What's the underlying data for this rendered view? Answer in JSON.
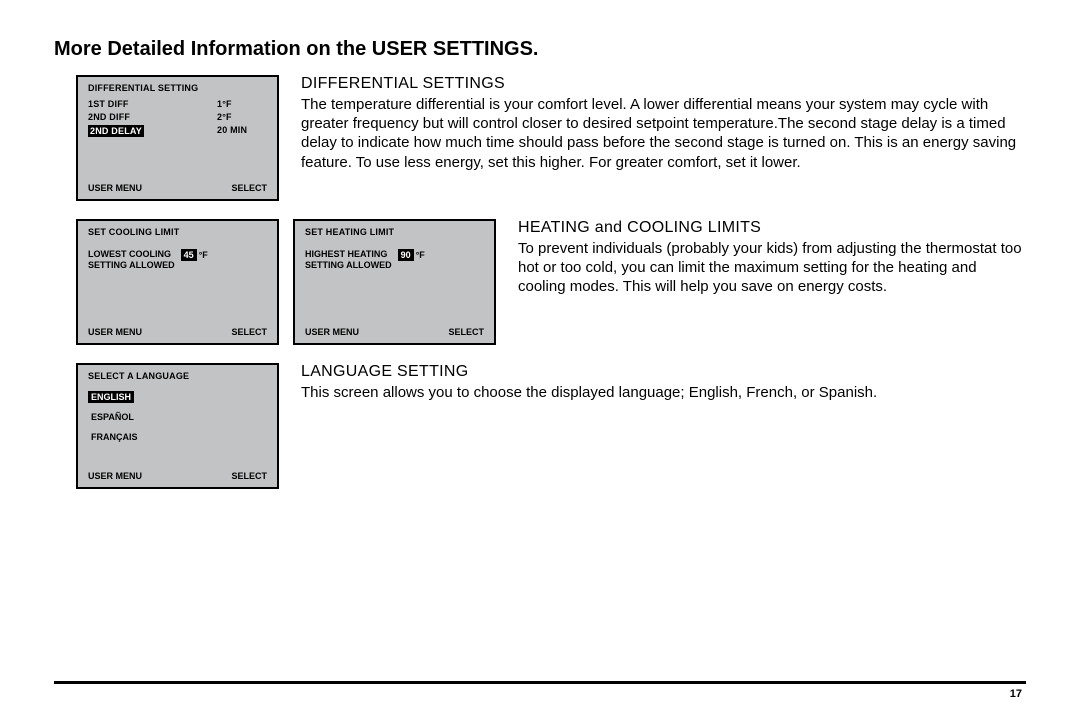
{
  "page": {
    "title": "More Detailed Information on the USER SETTINGS.",
    "number": "17"
  },
  "panels": {
    "differential": {
      "title": "DIFFERENTIAL SETTING",
      "rows": [
        {
          "label": "1ST DIFF",
          "value": "1°F",
          "highlight": false
        },
        {
          "label": "2ND DIFF",
          "value": "2°F",
          "highlight": false
        },
        {
          "label": "2ND DELAY",
          "value": "20 MIN",
          "highlight": true
        }
      ],
      "footer_left": "USER MENU",
      "footer_right": "SELECT"
    },
    "cooling": {
      "title": "SET COOLING LIMIT",
      "text_line1": "LOWEST COOLING",
      "text_line2": "SETTING ALLOWED",
      "value": "45",
      "unit": "°F",
      "footer_left": "USER MENU",
      "footer_right": "SELECT"
    },
    "heating": {
      "title": "SET HEATING LIMIT",
      "text_line1": "HIGHEST HEATING",
      "text_line2": "SETTING ALLOWED",
      "value": "90",
      "unit": "°F",
      "footer_left": "USER MENU",
      "footer_right": "SELECT"
    },
    "language": {
      "title": "SELECT A LANGUAGE",
      "options": [
        "ENGLISH",
        "ESPAÑOL",
        "FRANÇAIS"
      ],
      "selected_index": 0,
      "footer_left": "USER MENU",
      "footer_right": "SELECT"
    }
  },
  "sections": {
    "differential": {
      "heading": "DIFFERENTIAL SETTINGS",
      "body": "The temperature differential is your comfort level. A lower differential means your system may cycle with greater frequency but will control closer to desired setpoint temperature.The second stage delay is a timed delay to indicate how much time should pass before the second stage is turned on. This is an energy saving feature. To use less energy, set this higher. For greater comfort, set it lower."
    },
    "limits": {
      "heading": "HEATING and COOLING LIMITS",
      "body": "To prevent individuals (probably your kids) from adjusting the thermostat too hot or too cold, you can limit the maximum setting for the heating and cooling modes. This will help you save on energy costs."
    },
    "language": {
      "heading": "LANGUAGE SETTING",
      "body": "This screen allows you to choose the displayed language; English, French, or Spanish."
    }
  }
}
